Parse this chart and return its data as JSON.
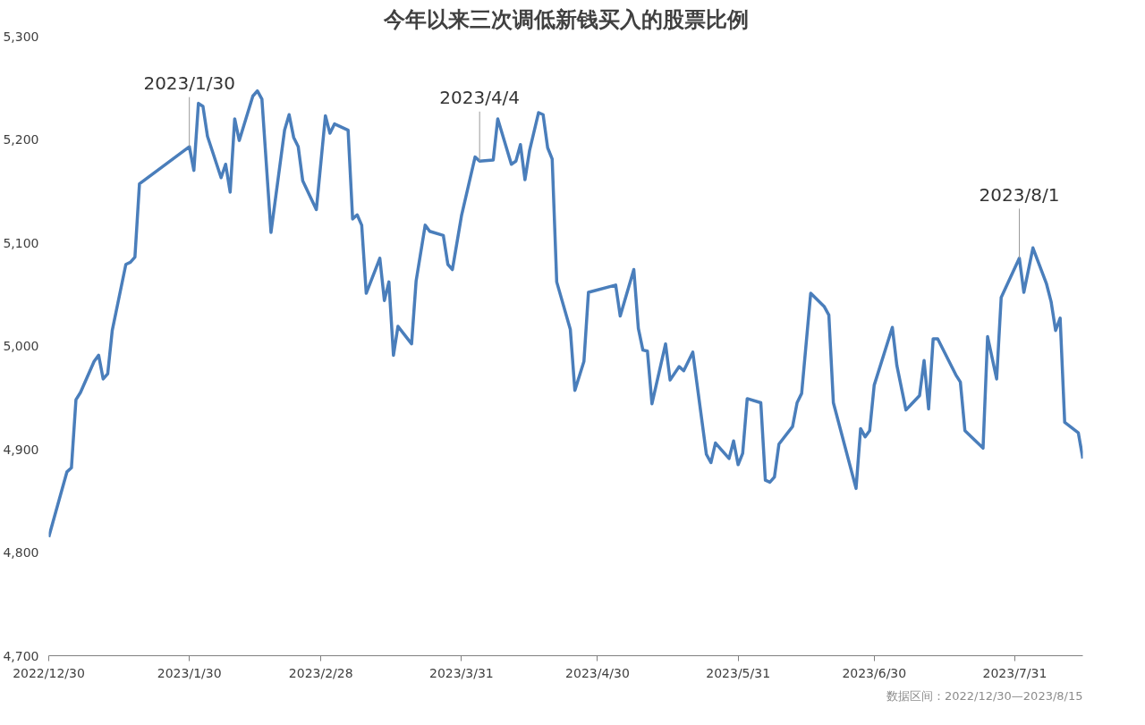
{
  "chart_data": {
    "type": "line",
    "title": "今年以来三次调低新钱买入的股票比例",
    "x": [
      "2022-12-30",
      "2023-01-03",
      "2023-01-04",
      "2023-01-05",
      "2023-01-06",
      "2023-01-09",
      "2023-01-10",
      "2023-01-11",
      "2023-01-12",
      "2023-01-13",
      "2023-01-16",
      "2023-01-17",
      "2023-01-18",
      "2023-01-19",
      "2023-01-30",
      "2023-01-31",
      "2023-02-01",
      "2023-02-02",
      "2023-02-03",
      "2023-02-06",
      "2023-02-07",
      "2023-02-08",
      "2023-02-09",
      "2023-02-10",
      "2023-02-13",
      "2023-02-14",
      "2023-02-15",
      "2023-02-17",
      "2023-02-20",
      "2023-02-21",
      "2023-02-22",
      "2023-02-23",
      "2023-02-24",
      "2023-02-27",
      "2023-03-01",
      "2023-03-02",
      "2023-03-03",
      "2023-03-06",
      "2023-03-07",
      "2023-03-08",
      "2023-03-09",
      "2023-03-10",
      "2023-03-13",
      "2023-03-14",
      "2023-03-15",
      "2023-03-16",
      "2023-03-17",
      "2023-03-20",
      "2023-03-21",
      "2023-03-23",
      "2023-03-24",
      "2023-03-27",
      "2023-03-28",
      "2023-03-29",
      "2023-03-31",
      "2023-04-03",
      "2023-04-04",
      "2023-04-07",
      "2023-04-08",
      "2023-04-11",
      "2023-04-12",
      "2023-04-13",
      "2023-04-14",
      "2023-04-15",
      "2023-04-17",
      "2023-04-18",
      "2023-04-19",
      "2023-04-20",
      "2023-04-21",
      "2023-04-24",
      "2023-04-25",
      "2023-04-27",
      "2023-04-28",
      "2023-05-04",
      "2023-05-05",
      "2023-05-08",
      "2023-05-09",
      "2023-05-10",
      "2023-05-11",
      "2023-05-12",
      "2023-05-15",
      "2023-05-16",
      "2023-05-18",
      "2023-05-19",
      "2023-05-21",
      "2023-05-24",
      "2023-05-25",
      "2023-05-26",
      "2023-05-29",
      "2023-05-30",
      "2023-05-31",
      "2023-06-01",
      "2023-06-02",
      "2023-06-05",
      "2023-06-06",
      "2023-06-07",
      "2023-06-08",
      "2023-06-09",
      "2023-06-12",
      "2023-06-13",
      "2023-06-14",
      "2023-06-16",
      "2023-06-19",
      "2023-06-20",
      "2023-06-21",
      "2023-06-26",
      "2023-06-27",
      "2023-06-28",
      "2023-06-29",
      "2023-06-30",
      "2023-07-04",
      "2023-07-05",
      "2023-07-07",
      "2023-07-10",
      "2023-07-11",
      "2023-07-12",
      "2023-07-13",
      "2023-07-14",
      "2023-07-18",
      "2023-07-19",
      "2023-07-20",
      "2023-07-24",
      "2023-07-25",
      "2023-07-27",
      "2023-07-28",
      "2023-08-01",
      "2023-08-02",
      "2023-08-04",
      "2023-08-07",
      "2023-08-08",
      "2023-08-09",
      "2023-08-10",
      "2023-08-11",
      "2023-08-14",
      "2023-08-15"
    ],
    "series": [
      {
        "color": "#4a7ebb",
        "values": [
          4815,
          4878,
          4882,
          4948,
          4955,
          4985,
          4991,
          4968,
          4973,
          5015,
          5079,
          5081,
          5086,
          5157,
          5193,
          5170,
          5235,
          5232,
          5203,
          5163,
          5176,
          5149,
          5220,
          5199,
          5242,
          5247,
          5239,
          5110,
          5209,
          5224,
          5202,
          5193,
          5160,
          5132,
          5223,
          5206,
          5215,
          5209,
          5123,
          5127,
          5117,
          5051,
          5085,
          5044,
          5062,
          4991,
          5019,
          5002,
          5063,
          5117,
          5111,
          5107,
          5079,
          5074,
          5126,
          5183,
          5179,
          5180,
          5220,
          5176,
          5179,
          5195,
          5161,
          5189,
          5226,
          5224,
          5192,
          5181,
          5062,
          5016,
          4957,
          4985,
          5052,
          5059,
          5029,
          5074,
          5017,
          4996,
          4995,
          4944,
          5002,
          4967,
          4980,
          4976,
          4994,
          4895,
          4887,
          4906,
          4891,
          4908,
          4885,
          4896,
          4949,
          4945,
          4870,
          4868,
          4873,
          4905,
          4922,
          4945,
          4954,
          5051,
          5038,
          5030,
          4945,
          4862,
          4920,
          4912,
          4918,
          4962,
          5018,
          4981,
          4938,
          4952,
          4986,
          4939,
          5007,
          5007,
          4972,
          4965,
          4918,
          4901,
          5009,
          4968,
          5047,
          5085,
          5052,
          5095,
          5060,
          5043,
          5015,
          5027,
          4926,
          4916,
          4891
        ]
      }
    ],
    "xlim": [
      "2022-12-30",
      "2023-08-15"
    ],
    "xticks": [
      {
        "value": "2022-12-30",
        "label": "2022/12/30"
      },
      {
        "value": "2023-01-30",
        "label": "2023/1/30"
      },
      {
        "value": "2023-02-28",
        "label": "2023/2/28"
      },
      {
        "value": "2023-03-31",
        "label": "2023/3/31"
      },
      {
        "value": "2023-04-30",
        "label": "2023/4/30"
      },
      {
        "value": "2023-05-31",
        "label": "2023/5/31"
      },
      {
        "value": "2023-06-30",
        "label": "2023/6/30"
      },
      {
        "value": "2023-07-31",
        "label": "2023/7/31"
      }
    ],
    "ylim": [
      4700,
      5300
    ],
    "yticks": [
      {
        "value": 4700,
        "label": "4,700"
      },
      {
        "value": 4800,
        "label": "4,800"
      },
      {
        "value": 4900,
        "label": "4,900"
      },
      {
        "value": 5000,
        "label": "5,000"
      },
      {
        "value": 5100,
        "label": "5,100"
      },
      {
        "value": 5200,
        "label": "5,200"
      },
      {
        "value": 5300,
        "label": "5,300"
      }
    ],
    "annotations": [
      {
        "text": "2023/1/30",
        "x": "2023-01-30",
        "y": 5193
      },
      {
        "text": "2023/4/4",
        "x": "2023-04-04",
        "y": 5179
      },
      {
        "text": "2023/8/1",
        "x": "2023-08-01",
        "y": 5085
      },
      "数据区间：2022/12/30—2023/8/15"
    ]
  }
}
